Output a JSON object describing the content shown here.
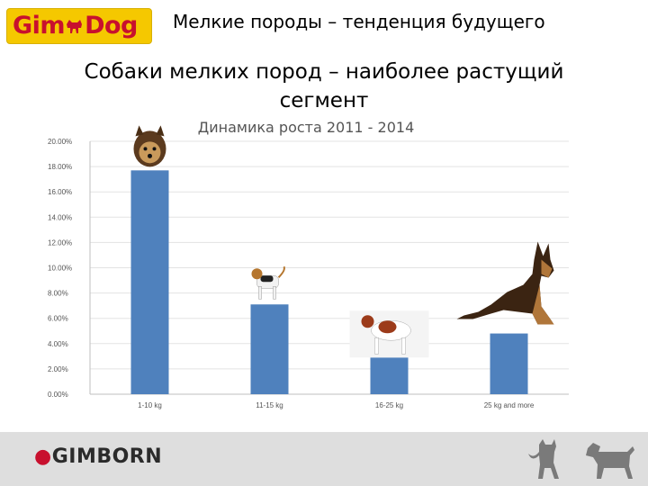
{
  "header": {
    "logo_left": "Gim",
    "logo_right": "Dog",
    "title": "Мелкие породы – тенденция будущего"
  },
  "slide": {
    "title": "Собаки мелких пород – наиболее растущий сегмент"
  },
  "footer": {
    "brand": "GIMBORN"
  },
  "colors": {
    "bar": "#4f81bd",
    "logo_bg": "#f5c800",
    "logo_text": "#c8102e",
    "footer_bg": "#dedede"
  },
  "chart_data": {
    "type": "bar",
    "title": "Динамика роста 2011 - 2014",
    "categories": [
      "1-10 kg",
      "11-15 kg",
      "16-25 kg",
      "25 kg and more"
    ],
    "values": [
      17.7,
      7.1,
      2.9,
      4.8
    ],
    "ylim": [
      0,
      20
    ],
    "yticks": [
      "0.00%",
      "2.00%",
      "4.00%",
      "6.00%",
      "8.00%",
      "10.00%",
      "12.00%",
      "14.00%",
      "16.00%",
      "18.00%",
      "20.00%"
    ],
    "xlabel": "",
    "ylabel": "",
    "grid": true,
    "legend": "none",
    "bar_icons": [
      "yorkshire-terrier-icon",
      "beagle-icon",
      "spaniel-icon",
      "german-shepherd-icon"
    ]
  }
}
